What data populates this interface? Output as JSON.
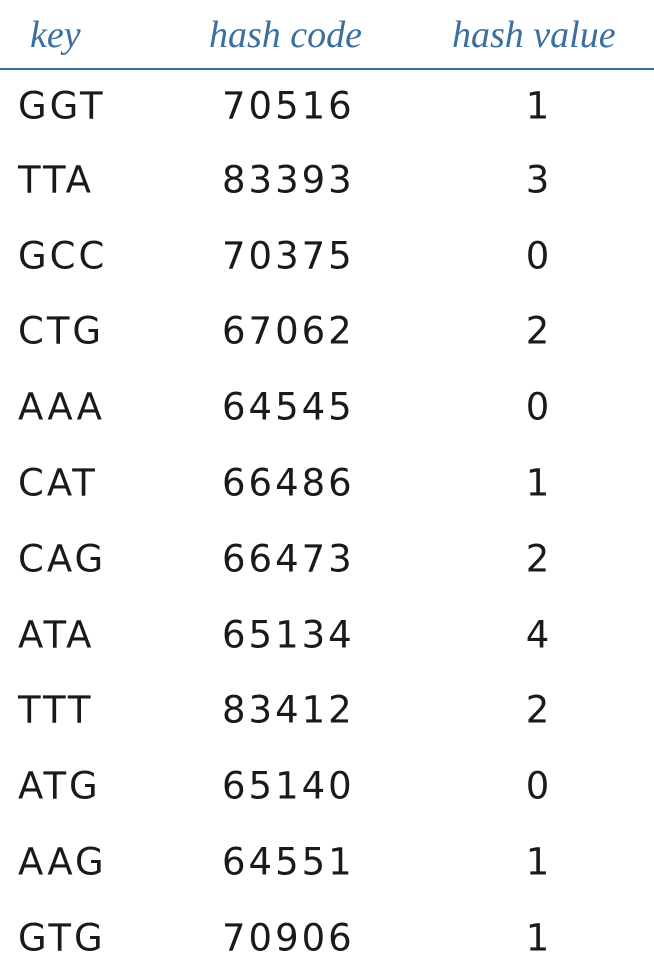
{
  "table": {
    "headers": {
      "key": "key",
      "hash_code": "hash code",
      "hash_value": "hash value"
    },
    "rows": [
      {
        "key": "GGT",
        "hash_code": "70516",
        "hash_value": "1"
      },
      {
        "key": "TTA",
        "hash_code": "83393",
        "hash_value": "3"
      },
      {
        "key": "GCC",
        "hash_code": "70375",
        "hash_value": "0"
      },
      {
        "key": "CTG",
        "hash_code": "67062",
        "hash_value": "2"
      },
      {
        "key": "AAA",
        "hash_code": "64545",
        "hash_value": "0"
      },
      {
        "key": "CAT",
        "hash_code": "66486",
        "hash_value": "1"
      },
      {
        "key": "CAG",
        "hash_code": "66473",
        "hash_value": "2"
      },
      {
        "key": "ATA",
        "hash_code": "65134",
        "hash_value": "4"
      },
      {
        "key": "TTT",
        "hash_code": "83412",
        "hash_value": "2"
      },
      {
        "key": "ATG",
        "hash_code": "65140",
        "hash_value": "0"
      },
      {
        "key": "AAG",
        "hash_code": "64551",
        "hash_value": "1"
      },
      {
        "key": "GTG",
        "hash_code": "70906",
        "hash_value": "1"
      }
    ]
  },
  "colors": {
    "header": "#3a6f9f",
    "text": "#1a1a1a"
  }
}
